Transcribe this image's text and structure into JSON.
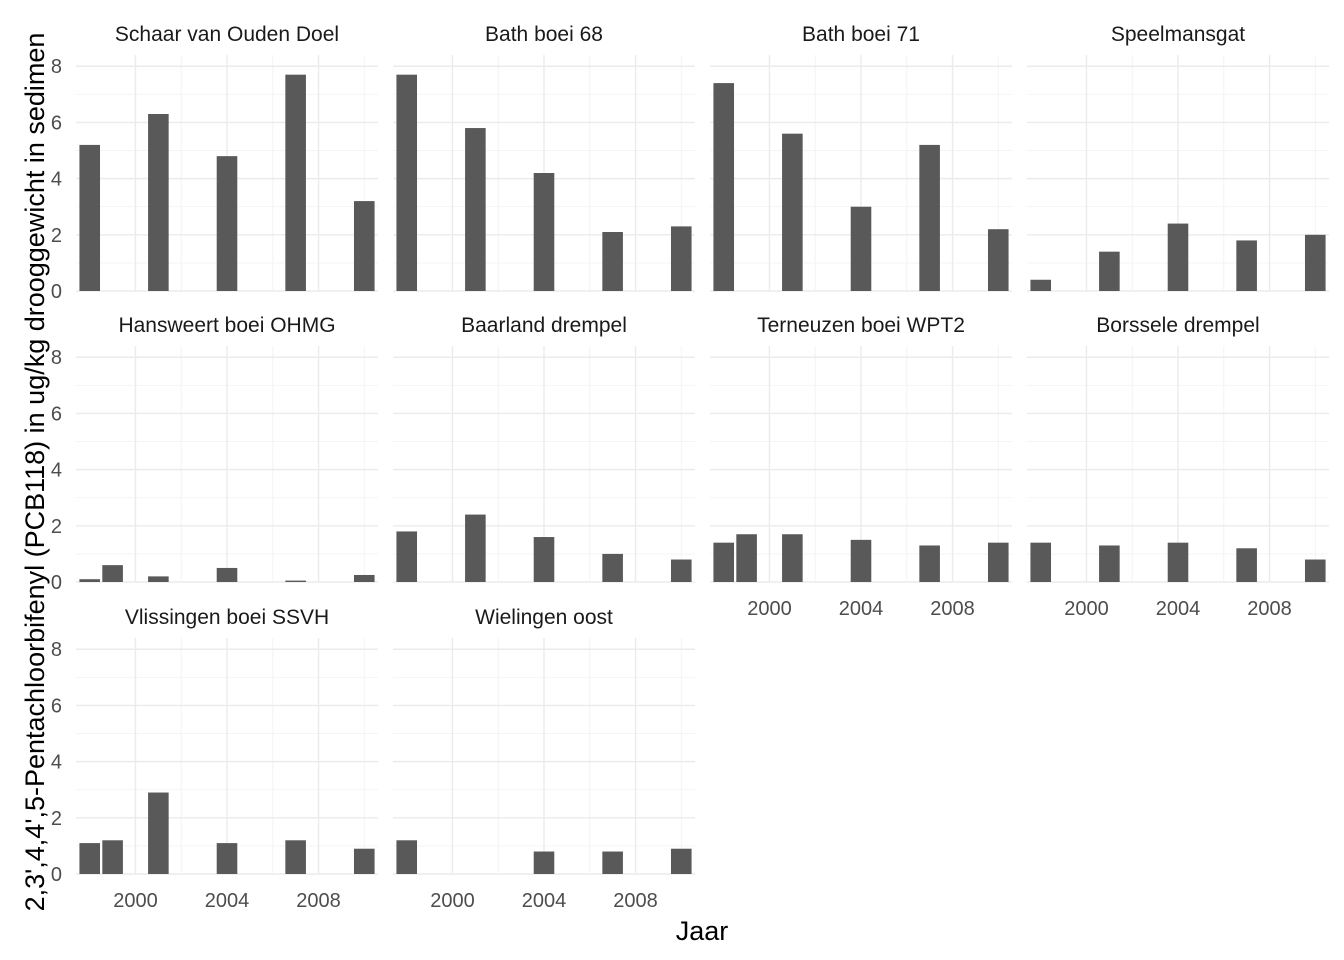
{
  "chart_data": {
    "type": "bar",
    "theme": "minimal",
    "layout": "facet_wrap",
    "ncol": 4,
    "xlabel": "Jaar",
    "ylabel": "2,3',4,4',5-Pentachloorbifenyl (PCB118) in ug/kg drooggewicht in sedimen",
    "xlim": [
      1997.4,
      2010.6
    ],
    "ylim": [
      0,
      8.4
    ],
    "x_ticks": [
      2000,
      2004,
      2008
    ],
    "y_ticks": [
      0,
      2,
      4,
      6,
      8
    ],
    "bar_color": "#595959",
    "grid": true,
    "panels": [
      {
        "name": "Schaar van Ouden Doel",
        "x": [
          1998,
          2001,
          2004,
          2007,
          2010
        ],
        "values": [
          5.2,
          6.3,
          4.8,
          7.7,
          3.2
        ]
      },
      {
        "name": "Bath boei 68",
        "x": [
          1998,
          2001,
          2004,
          2007,
          2010
        ],
        "values": [
          7.7,
          5.8,
          4.2,
          2.1,
          2.3
        ]
      },
      {
        "name": "Bath boei 71",
        "x": [
          1998,
          2001,
          2004,
          2007,
          2010
        ],
        "values": [
          7.4,
          5.6,
          3.0,
          5.2,
          2.2
        ]
      },
      {
        "name": "Speelmansgat",
        "x": [
          1998,
          2001,
          2004,
          2007,
          2010
        ],
        "values": [
          0.4,
          1.4,
          2.4,
          1.8,
          2.0
        ]
      },
      {
        "name": "Hansweert boei OHMG",
        "x": [
          1998,
          1999,
          2001,
          2004,
          2007,
          2010
        ],
        "values": [
          0.1,
          0.6,
          0.2,
          0.5,
          0.05,
          0.25
        ]
      },
      {
        "name": "Baarland drempel",
        "x": [
          1998,
          2001,
          2004,
          2007,
          2010
        ],
        "values": [
          1.8,
          2.4,
          1.6,
          1.0,
          0.8
        ]
      },
      {
        "name": "Terneuzen boei WPT2",
        "x": [
          1998,
          1999,
          2001,
          2004,
          2007,
          2010
        ],
        "values": [
          1.4,
          1.7,
          1.7,
          1.5,
          1.3,
          1.4
        ]
      },
      {
        "name": "Borssele drempel",
        "x": [
          1998,
          2001,
          2004,
          2007,
          2010
        ],
        "values": [
          1.4,
          1.3,
          1.4,
          1.2,
          0.8
        ]
      },
      {
        "name": "Vlissingen boei SSVH",
        "x": [
          1998,
          1999,
          2001,
          2004,
          2007,
          2010
        ],
        "values": [
          1.1,
          1.2,
          2.9,
          1.1,
          1.2,
          0.9
        ]
      },
      {
        "name": "Wielingen oost",
        "x": [
          1998,
          2004,
          2007,
          2010
        ],
        "values": [
          1.2,
          0.8,
          0.8,
          0.9
        ]
      }
    ]
  }
}
